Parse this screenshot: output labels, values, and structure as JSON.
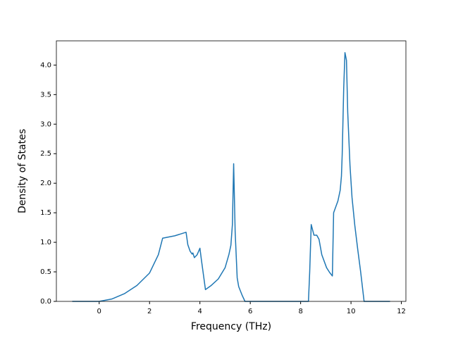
{
  "chart_data": {
    "type": "line",
    "xlabel": "Frequency (THz)",
    "ylabel": "Density of States",
    "xlim": [
      -1.7,
      12.18
    ],
    "ylim": [
      0,
      4.41
    ],
    "xticks": [
      0,
      2,
      4,
      6,
      8,
      10,
      12
    ],
    "yticks": [
      {
        "value": 0,
        "label": "0.0"
      },
      {
        "value": 0.5,
        "label": "0.5"
      },
      {
        "value": 1,
        "label": "1.0"
      },
      {
        "value": 1.5,
        "label": "1.5"
      },
      {
        "value": 2,
        "label": "2.0"
      },
      {
        "value": 2.5,
        "label": "2.5"
      },
      {
        "value": 3,
        "label": "3.0"
      },
      {
        "value": 3.5,
        "label": "3.5"
      },
      {
        "value": 4,
        "label": "4.0"
      }
    ],
    "x": [
      -1.07,
      0,
      0.5,
      1,
      1.5,
      2,
      2.35,
      2.52,
      3.0,
      3.45,
      3.52,
      3.61,
      3.69,
      3.72,
      3.78,
      3.89,
      4.0,
      4.06,
      4.22,
      4.45,
      4.73,
      5.0,
      5.15,
      5.23,
      5.29,
      5.34,
      5.4,
      5.48,
      5.54,
      5.68,
      5.79,
      8.31,
      8.36,
      8.42,
      8.53,
      8.64,
      8.73,
      8.84,
      9.03,
      9.15,
      9.26,
      9.31,
      9.48,
      9.57,
      9.62,
      9.65,
      9.71,
      9.76,
      9.82,
      9.87,
      9.96,
      10.04,
      10.15,
      10.27,
      10.38,
      10.52,
      11.55
    ],
    "series": [
      {
        "name": "DOS",
        "color": "#1f77b4",
        "values": [
          0,
          0,
          0.04,
          0.13,
          0.27,
          0.48,
          0.79,
          1.07,
          1.11,
          1.17,
          0.96,
          0.85,
          0.8,
          0.82,
          0.74,
          0.79,
          0.9,
          0.7,
          0.2,
          0.27,
          0.38,
          0.57,
          0.79,
          0.95,
          1.3,
          2.33,
          1.17,
          0.4,
          0.25,
          0.1,
          0,
          0,
          0.5,
          1.3,
          1.12,
          1.12,
          1.05,
          0.79,
          0.57,
          0.49,
          0.43,
          1.5,
          1.7,
          1.88,
          2.12,
          2.48,
          3.6,
          4.21,
          4.08,
          3.2,
          2.3,
          1.76,
          1.29,
          0.87,
          0.51,
          0,
          0
        ]
      }
    ]
  }
}
